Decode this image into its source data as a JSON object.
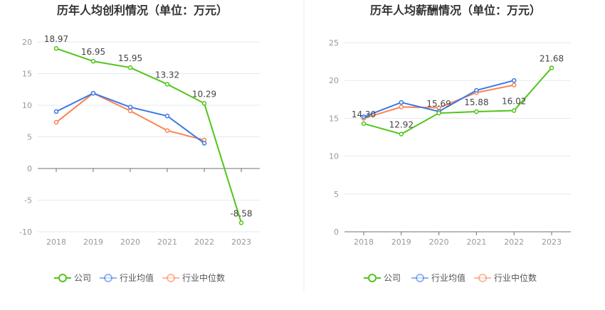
{
  "chart_data": [
    {
      "type": "line",
      "title": "历年人均创利情况（单位：万元）",
      "categories": [
        "2018",
        "2019",
        "2020",
        "2021",
        "2022",
        "2023"
      ],
      "ylim": [
        -10,
        20
      ],
      "yticks": [
        20,
        15,
        10,
        5,
        0,
        -5,
        -10
      ],
      "grid": true,
      "legend": "bottom",
      "series": [
        {
          "name": "公司",
          "color": "#52c41a",
          "values": [
            18.97,
            16.95,
            15.95,
            13.32,
            10.29,
            -8.58
          ],
          "labels": [
            "18.97",
            "16.95",
            "15.95",
            "13.32",
            "10.29",
            "-8.58"
          ]
        },
        {
          "name": "行业均值",
          "color": "#3b78e7",
          "values": [
            9.0,
            11.9,
            9.7,
            8.3,
            4.0,
            null
          ]
        },
        {
          "name": "行业中位数",
          "color": "#fa8452",
          "values": [
            7.3,
            11.9,
            9.1,
            6.0,
            4.5,
            null
          ]
        }
      ]
    },
    {
      "type": "line",
      "title": "历年人均薪酬情况（单位：万元）",
      "categories": [
        "2018",
        "2019",
        "2020",
        "2021",
        "2022",
        "2023"
      ],
      "ylim": [
        0,
        25
      ],
      "yticks": [
        25,
        20,
        15,
        10,
        5,
        0
      ],
      "grid": true,
      "legend": "bottom",
      "series": [
        {
          "name": "公司",
          "color": "#52c41a",
          "values": [
            14.3,
            12.92,
            15.69,
            15.88,
            16.02,
            21.68
          ],
          "labels": [
            "14.30",
            "12.92",
            "15.69",
            "15.88",
            "16.02",
            "21.68"
          ]
        },
        {
          "name": "行业均值",
          "color": "#3b78e7",
          "values": [
            15.2,
            17.1,
            15.9,
            18.7,
            20.0,
            null
          ]
        },
        {
          "name": "行业中位数",
          "color": "#fa8452",
          "values": [
            15.0,
            16.5,
            16.4,
            18.4,
            19.4,
            null
          ]
        }
      ]
    }
  ]
}
